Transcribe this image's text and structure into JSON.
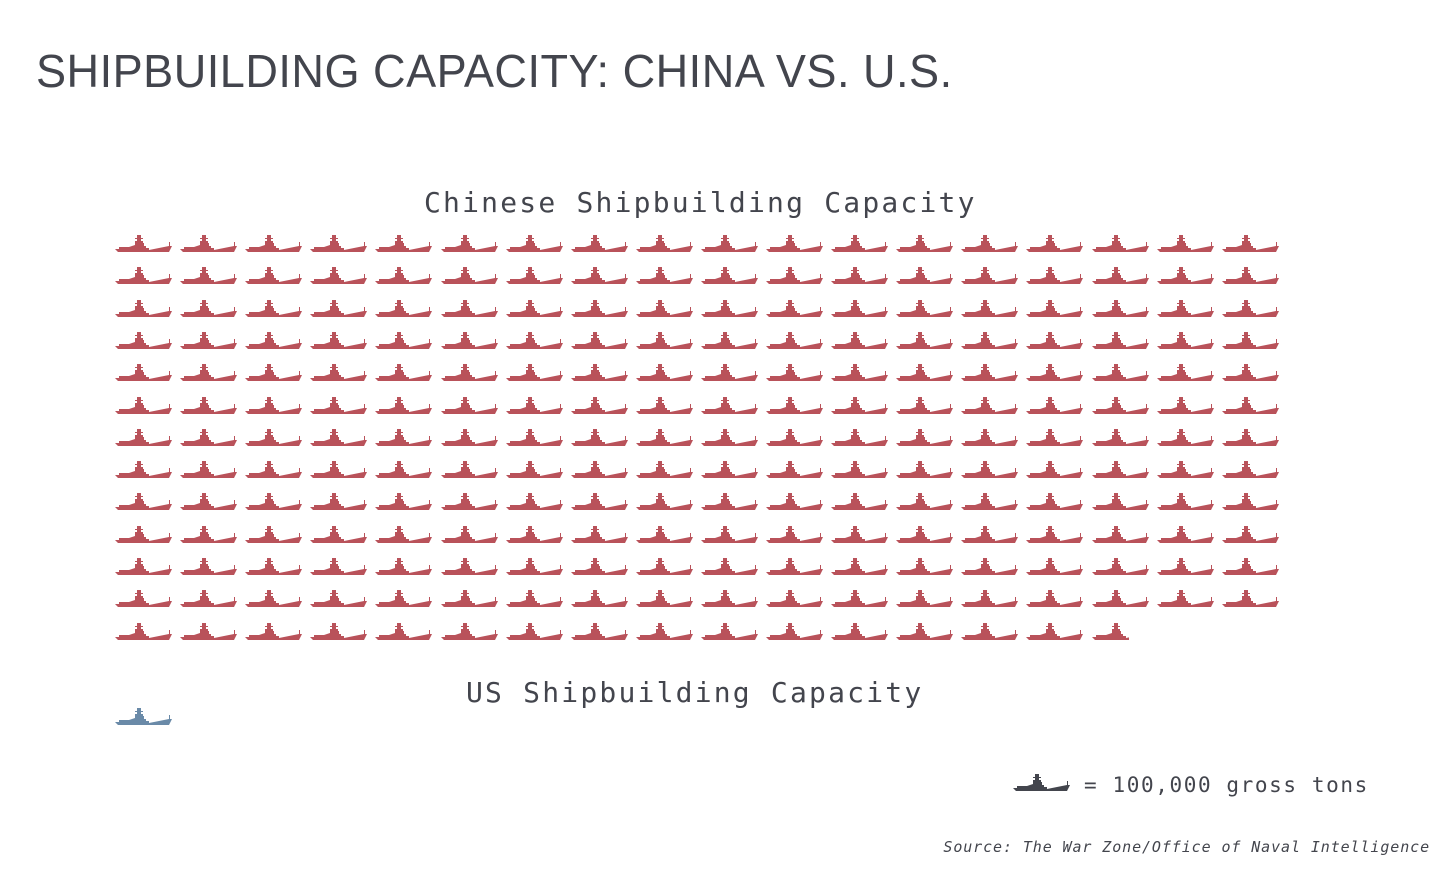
{
  "title": "SHIPBUILDING CAPACITY: CHINA VS. U.S.",
  "china_heading": "Chinese Shipbuilding Capacity",
  "us_heading": "US Shipbuilding Capacity",
  "legend": {
    "icon": "warship-icon",
    "text": "= 100,000 gross tons"
  },
  "source": "Source: The War Zone/Office of Naval Intelligence",
  "colors": {
    "china": "#b9525a",
    "us": "#6a8aa8",
    "legend": "#43454d",
    "text": "#43454d"
  },
  "chart_data": {
    "type": "pictogram",
    "title": "SHIPBUILDING CAPACITY: CHINA VS. U.S.",
    "unit": "gross tons",
    "icon_value": 100000,
    "icons_per_row": 18,
    "series": [
      {
        "name": "Chinese Shipbuilding Capacity",
        "icons": 231.6,
        "value": 23160000,
        "color": "#b9525a"
      },
      {
        "name": "US Shipbuilding Capacity",
        "icons": 1,
        "value": 100000,
        "color": "#6a8aa8"
      }
    ],
    "legend": "= 100,000 gross tons",
    "source": "Source: The War Zone/Office of Naval Intelligence"
  }
}
